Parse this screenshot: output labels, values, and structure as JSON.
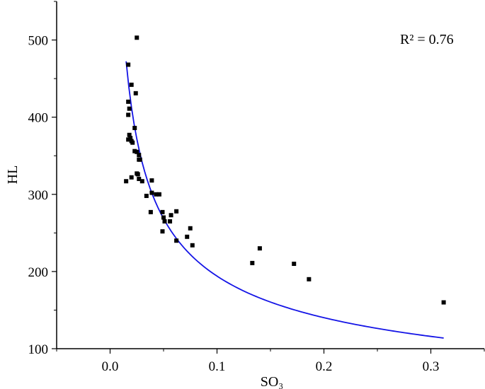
{
  "chart_data": {
    "type": "scatter",
    "xlabel": "SO₃",
    "ylabel": "HL",
    "xlim": [
      -0.05,
      0.35
    ],
    "ylim": [
      100,
      550
    ],
    "xticks": [
      0.0,
      0.1,
      0.2,
      0.3
    ],
    "yticks": [
      100,
      200,
      300,
      400,
      500
    ],
    "xtick_labels": [
      "0.0",
      "0.1",
      "0.2",
      "0.3"
    ],
    "ytick_labels": [
      "100",
      "200",
      "300",
      "400",
      "500"
    ],
    "grid": false,
    "annotation": "R² = 0.76",
    "colors": {
      "points": "#000000",
      "fit_line": "#1414e6"
    },
    "points": [
      [
        0.025,
        503
      ],
      [
        0.017,
        468
      ],
      [
        0.02,
        442
      ],
      [
        0.024,
        431
      ],
      [
        0.017,
        420
      ],
      [
        0.018,
        411
      ],
      [
        0.017,
        403
      ],
      [
        0.023,
        386
      ],
      [
        0.018,
        377
      ],
      [
        0.019,
        373
      ],
      [
        0.017,
        371
      ],
      [
        0.02,
        369
      ],
      [
        0.021,
        367
      ],
      [
        0.023,
        356
      ],
      [
        0.025,
        355
      ],
      [
        0.027,
        351
      ],
      [
        0.027,
        345
      ],
      [
        0.028,
        345
      ],
      [
        0.025,
        327
      ],
      [
        0.026,
        326
      ],
      [
        0.027,
        320
      ],
      [
        0.02,
        322
      ],
      [
        0.015,
        317
      ],
      [
        0.03,
        317
      ],
      [
        0.039,
        318
      ],
      [
        0.034,
        298
      ],
      [
        0.039,
        302
      ],
      [
        0.043,
        300
      ],
      [
        0.046,
        300
      ],
      [
        0.038,
        277
      ],
      [
        0.049,
        277
      ],
      [
        0.05,
        270
      ],
      [
        0.051,
        265
      ],
      [
        0.056,
        265
      ],
      [
        0.057,
        273
      ],
      [
        0.062,
        278
      ],
      [
        0.049,
        252
      ],
      [
        0.062,
        240
      ],
      [
        0.072,
        245
      ],
      [
        0.075,
        256
      ],
      [
        0.077,
        234
      ],
      [
        0.133,
        211
      ],
      [
        0.14,
        230
      ],
      [
        0.172,
        210
      ],
      [
        0.186,
        190
      ],
      [
        0.312,
        160
      ]
    ],
    "fit": {
      "model": "power",
      "a": 65.9,
      "b": -0.469,
      "x_range": [
        0.015,
        0.312
      ]
    }
  }
}
